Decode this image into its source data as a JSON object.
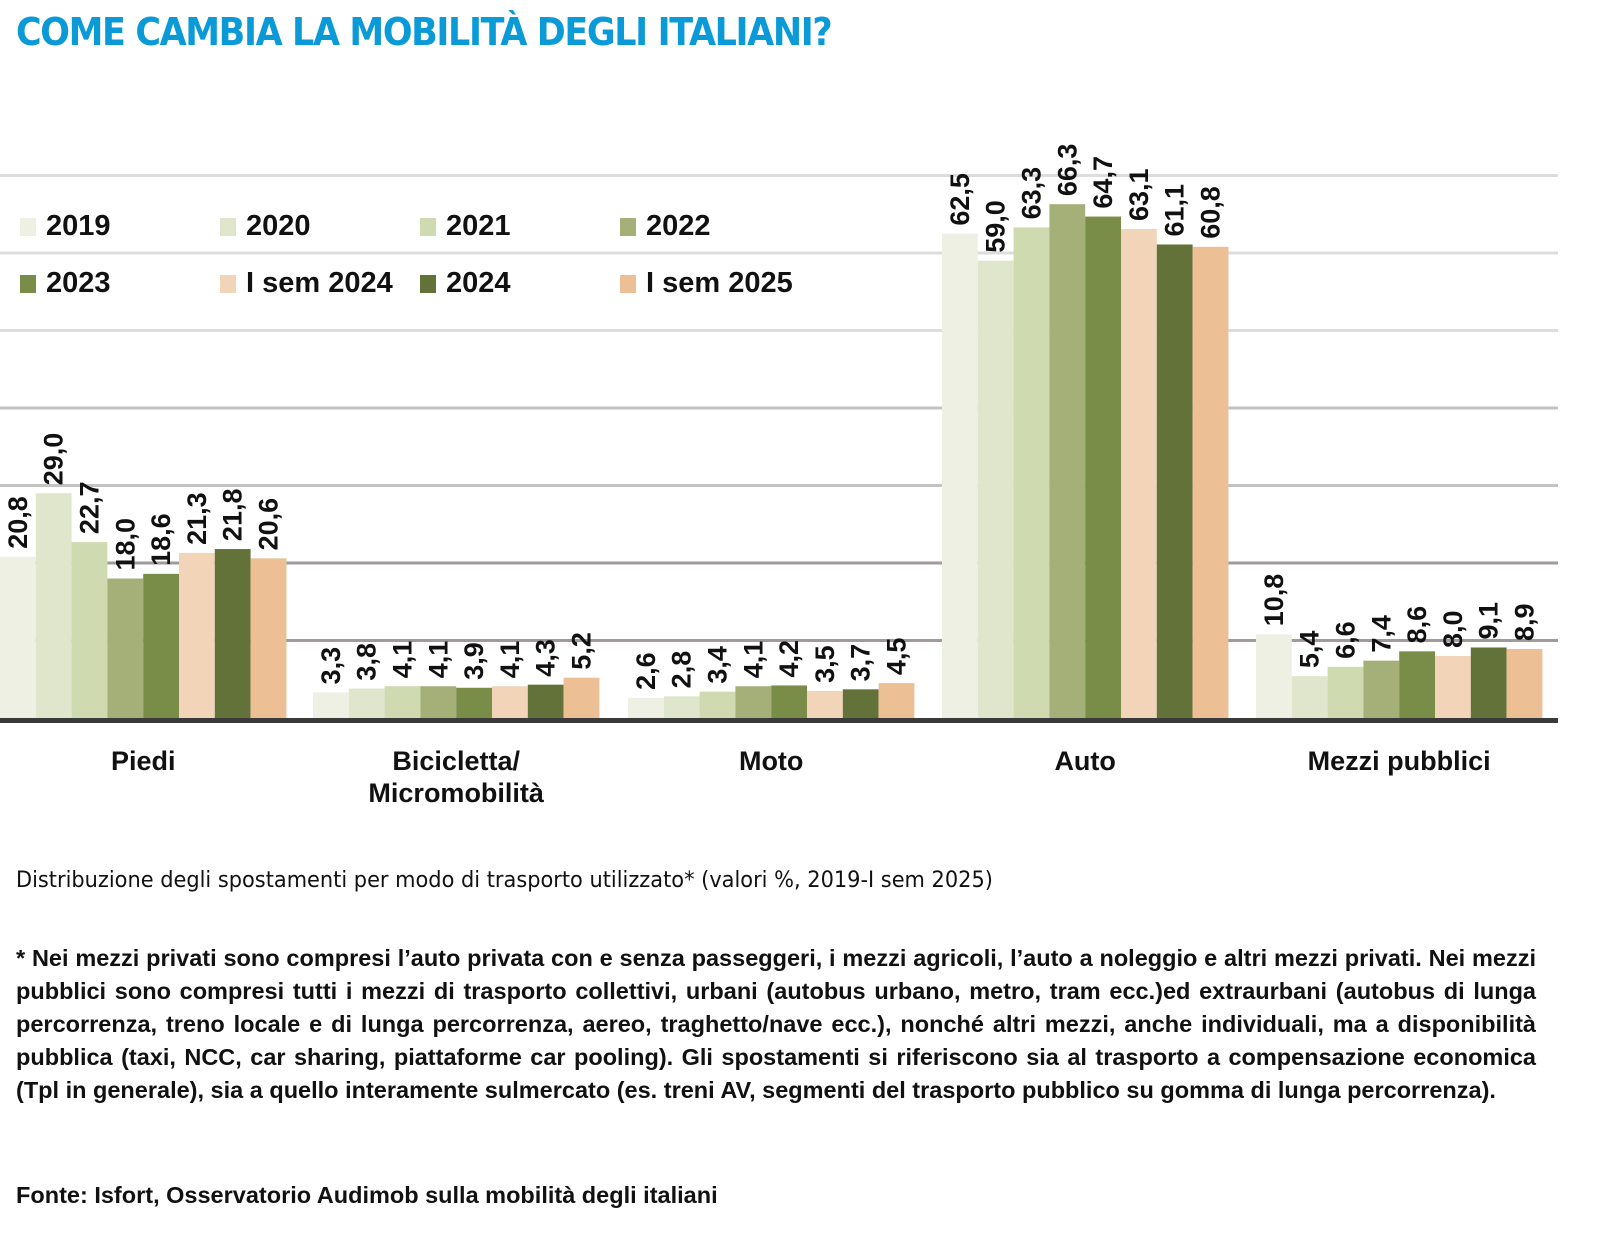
{
  "header": {
    "title": "COME CAMBIA LA MOBILITÀ DEGLI ITALIANI?"
  },
  "chart_data": {
    "type": "bar",
    "title": "COME CAMBIA LA MOBILITÀ DEGLI ITALIANI?",
    "xlabel": "",
    "ylabel": "",
    "ylim": [
      0,
      70
    ],
    "grid": true,
    "gridlines": [
      10,
      20,
      30,
      40,
      50,
      60,
      70
    ],
    "legend_position": "top-left",
    "categories": [
      "Piedi",
      "Bicicletta/ Micromobilità",
      "Moto",
      "Auto",
      "Mezzi pubblici"
    ],
    "category_lines": [
      [
        "Piedi"
      ],
      [
        "Bicicletta/",
        "Micromobilità"
      ],
      [
        "Moto"
      ],
      [
        "Auto"
      ],
      [
        "Mezzi pubblici"
      ]
    ],
    "series": [
      {
        "name": "2019",
        "color": "#eef0e4",
        "values": [
          20.8,
          3.3,
          2.6,
          62.5,
          10.8
        ],
        "labels": [
          "20,8",
          "3,3",
          "2,6",
          "62,5",
          "10,8"
        ]
      },
      {
        "name": "2020",
        "color": "#dfe6cc",
        "values": [
          29.0,
          3.8,
          2.8,
          59.0,
          5.4
        ],
        "labels": [
          "29,0",
          "3,8",
          "2,8",
          "59,0",
          "5,4"
        ]
      },
      {
        "name": "2021",
        "color": "#cfdab0",
        "values": [
          22.7,
          4.1,
          3.4,
          63.3,
          6.6
        ],
        "labels": [
          "22,7",
          "4,1",
          "3,4",
          "63,3",
          "6,6"
        ]
      },
      {
        "name": "2022",
        "color": "#a4b077",
        "values": [
          18.0,
          4.1,
          4.1,
          66.3,
          7.4
        ],
        "labels": [
          "18,0",
          "4,1",
          "4,1",
          "66,3",
          "7,4"
        ]
      },
      {
        "name": "2023",
        "color": "#7a8d48",
        "values": [
          18.6,
          3.9,
          4.2,
          64.7,
          8.6
        ],
        "labels": [
          "18,6",
          "3,9",
          "4,2",
          "64,7",
          "8,6"
        ]
      },
      {
        "name": "I sem 2024",
        "color": "#f2d4b8",
        "values": [
          21.3,
          4.1,
          3.5,
          63.1,
          8.0
        ],
        "labels": [
          "21,3",
          "4,1",
          "3,5",
          "63,1",
          "8,0"
        ]
      },
      {
        "name": "2024",
        "color": "#627238",
        "values": [
          21.8,
          4.3,
          3.7,
          61.1,
          9.1
        ],
        "labels": [
          "21,8",
          "4,3",
          "3,7",
          "61,1",
          "9,1"
        ]
      },
      {
        "name": "I sem 2025",
        "color": "#ecbf94",
        "values": [
          20.6,
          5.2,
          4.5,
          60.8,
          8.9
        ],
        "labels": [
          "20,6",
          "5,2",
          "4,5",
          "60,8",
          "8,9"
        ]
      }
    ]
  },
  "footer": {
    "subtitle": "Distribuzione degli spostamenti per modo di trasporto utilizzato* (valori %, 2019-I sem 2025)",
    "note": "* Nei mezzi privati sono compresi l’auto privata con e senza passeggeri, i mezzi agricoli, l’auto a noleggio e altri mezzi privati. Nei mezzi pubblici sono compresi tutti i mezzi di trasporto collettivi, urbani (autobus urbano, metro, tram ecc.)ed extraurbani (autobus di lunga percorrenza, treno locale e di lunga percorrenza, aereo, traghetto/nave ecc.), nonché altri mezzi, anche individuali, ma a disponibilità pubblica (taxi, NCC, car sharing, piattaforme car pooling). Gli spostamenti si riferiscono sia al trasporto a compensazione economica (Tpl in generale), sia a quello interamente sulmercato (es. treni AV, segmenti del trasporto pubblico su gomma di lunga percorrenza).",
    "source": "Fonte: Isfort, Osservatorio Audimob sulla mobilità degli italiani"
  }
}
